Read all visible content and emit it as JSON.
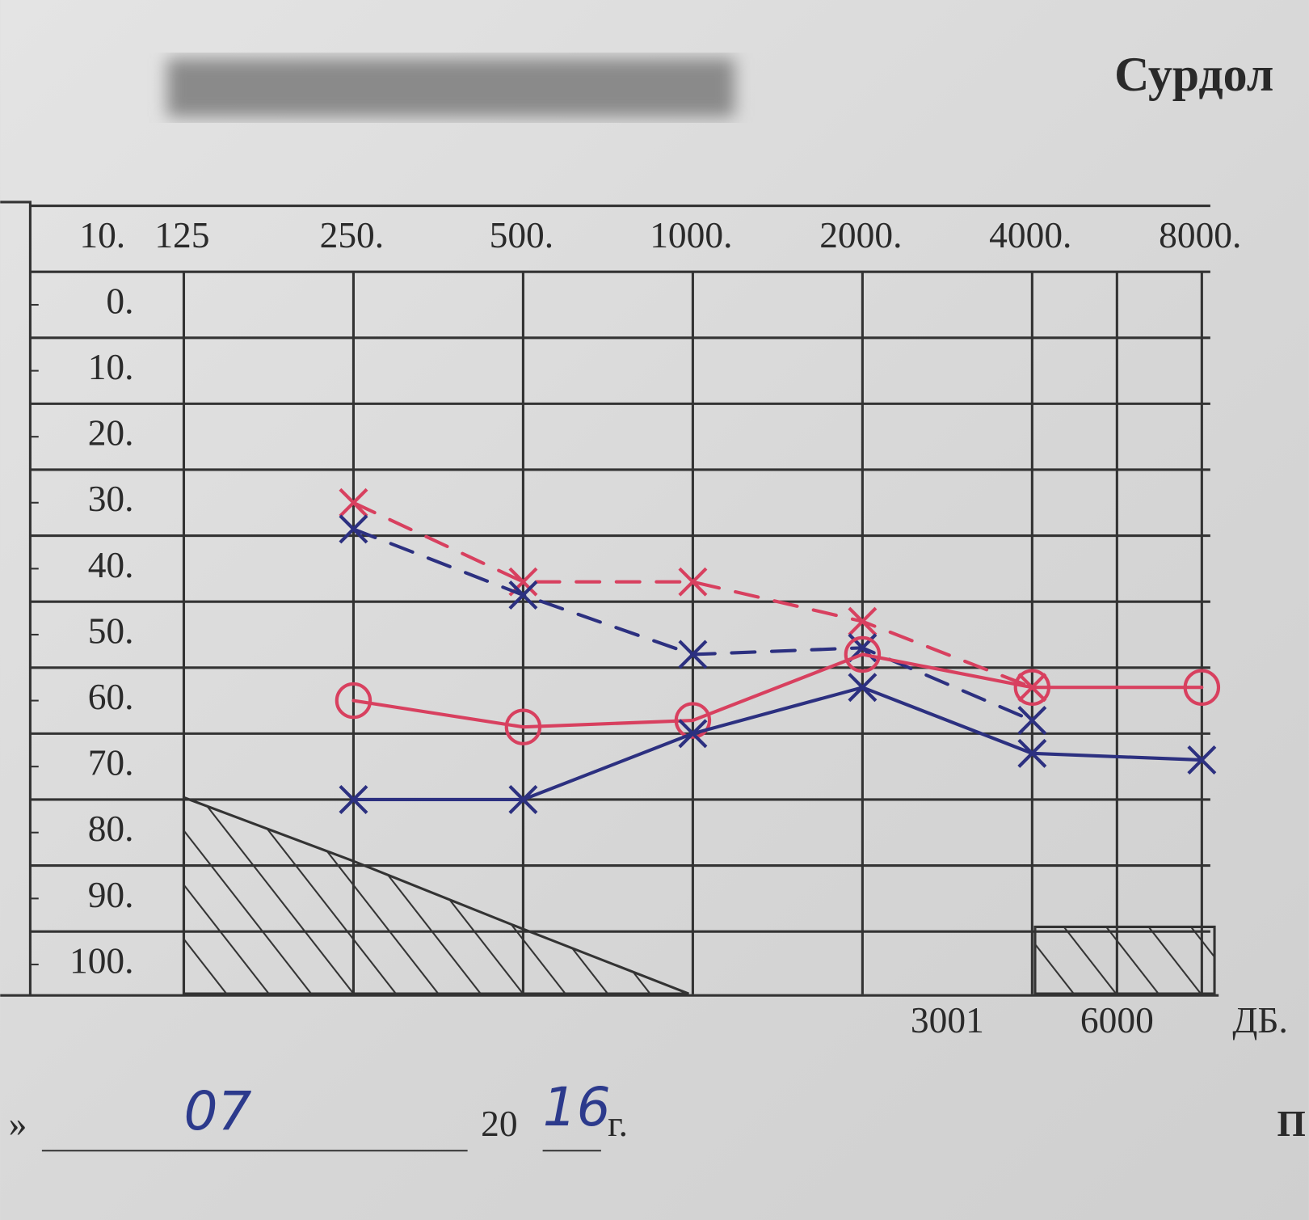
{
  "chart_data": {
    "type": "line",
    "title": "Сурдол",
    "corner_label": "10.",
    "categories": [
      "125",
      "250.",
      "500.",
      "1000.",
      "2000.",
      "4000.",
      "8000."
    ],
    "bottom_labels": [
      "3001",
      "6000"
    ],
    "unit_label": "ДБ.",
    "ylim": [
      -15,
      105
    ],
    "yticks": [
      {
        "value": 0,
        "label": "0."
      },
      {
        "value": 10,
        "label": "10."
      },
      {
        "value": 20,
        "label": "20."
      },
      {
        "value": 30,
        "label": "30."
      },
      {
        "value": 40,
        "label": "40."
      },
      {
        "value": 50,
        "label": "50."
      },
      {
        "value": 60,
        "label": "60."
      },
      {
        "value": 70,
        "label": "70."
      },
      {
        "value": 80,
        "label": "80."
      },
      {
        "value": 90,
        "label": "90."
      },
      {
        "value": 100,
        "label": "100."
      }
    ],
    "inverted": true,
    "series": [
      {
        "color": "#d8405f",
        "dashed": true,
        "marker": "cross",
        "values": [
          null,
          30,
          42,
          42,
          48,
          58,
          null
        ]
      },
      {
        "color": "#2c3080",
        "dashed": true,
        "marker": "cross",
        "values": [
          null,
          34,
          44,
          53,
          52,
          63,
          null
        ]
      },
      {
        "color": "#d8405f",
        "dashed": false,
        "marker": "circle",
        "values": [
          null,
          60,
          64,
          63,
          53,
          58,
          58
        ]
      },
      {
        "color": "#2c3080",
        "dashed": false,
        "marker": "cross",
        "values": [
          null,
          75,
          75,
          65,
          58,
          68,
          69
        ]
      }
    ]
  },
  "form": {
    "day": "07",
    "year_prefix": "20",
    "year_suffix": "16",
    "year_mark": "г.",
    "right_fragment": "П"
  }
}
